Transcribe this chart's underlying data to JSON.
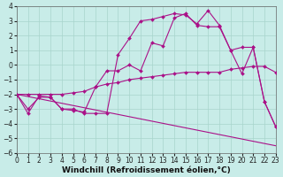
{
  "xlabel": "Windchill (Refroidissement éolien,°C)",
  "background_color": "#c8ece8",
  "grid_color": "#a8d4cc",
  "line_color": "#aa1188",
  "xlim": [
    0,
    23
  ],
  "ylim": [
    -6,
    4
  ],
  "xticks": [
    0,
    1,
    2,
    3,
    4,
    5,
    6,
    7,
    8,
    9,
    10,
    11,
    12,
    13,
    14,
    15,
    16,
    17,
    18,
    19,
    20,
    21,
    22,
    23
  ],
  "yticks": [
    -6,
    -5,
    -4,
    -3,
    -2,
    -1,
    0,
    1,
    2,
    3,
    4
  ],
  "series": [
    {
      "x": [
        0,
        1,
        2,
        3,
        4,
        5,
        6,
        7,
        8,
        9,
        10,
        11,
        12,
        13,
        14,
        15,
        16,
        17,
        18,
        19,
        20,
        21,
        22,
        23
      ],
      "y": [
        -2.0,
        -3.3,
        -2.1,
        -2.2,
        -3.0,
        -3.0,
        -3.3,
        -3.3,
        -3.3,
        0.7,
        1.8,
        3.0,
        3.1,
        3.3,
        3.5,
        3.4,
        2.8,
        3.7,
        2.7,
        1.0,
        1.2,
        1.2,
        -2.5,
        -4.2
      ]
    },
    {
      "x": [
        0,
        1,
        2,
        3,
        4,
        5,
        6,
        7,
        8,
        9,
        10,
        11,
        12,
        13,
        14,
        15,
        16,
        17,
        18,
        19,
        20,
        21,
        22,
        23
      ],
      "y": [
        -2.0,
        -3.0,
        -2.2,
        -2.2,
        -3.0,
        -3.1,
        -3.2,
        -1.5,
        -0.4,
        -0.4,
        0.0,
        -0.4,
        1.5,
        1.3,
        3.2,
        3.5,
        2.7,
        2.6,
        2.6,
        1.0,
        -0.6,
        1.2,
        -2.5,
        -4.2
      ]
    },
    {
      "x": [
        0,
        1,
        2,
        3,
        4,
        5,
        6,
        7,
        8,
        9,
        10,
        11,
        12,
        13,
        14,
        15,
        16,
        17,
        18,
        19,
        20,
        21,
        22,
        23
      ],
      "y": [
        -2.0,
        -2.0,
        -2.0,
        -2.0,
        -2.0,
        -1.9,
        -1.8,
        -1.5,
        -1.3,
        -1.2,
        -1.0,
        -0.9,
        -0.8,
        -0.7,
        -0.6,
        -0.5,
        -0.5,
        -0.5,
        -0.5,
        -0.3,
        -0.2,
        -0.1,
        -0.1,
        -0.5
      ]
    },
    {
      "x": [
        0,
        23
      ],
      "y": [
        -2.0,
        -5.5
      ]
    }
  ],
  "tick_fontsize": 5.5,
  "axis_fontsize": 6.5,
  "marker_size": 2.0,
  "line_width": 0.8
}
